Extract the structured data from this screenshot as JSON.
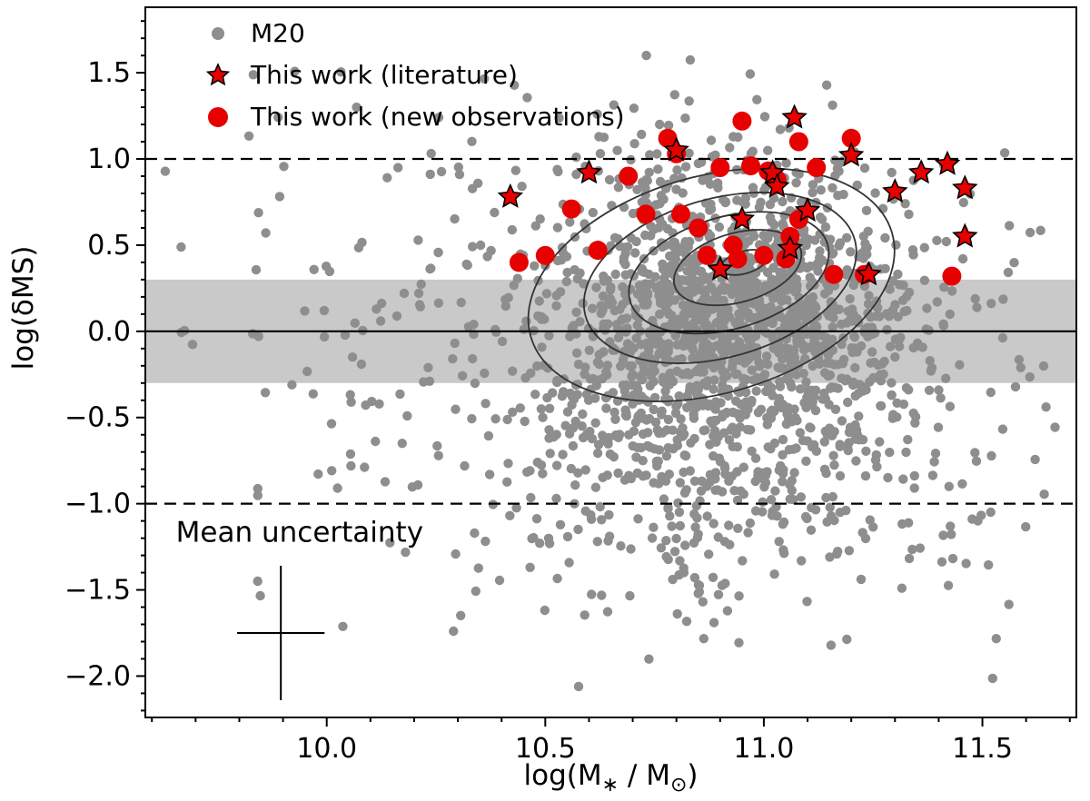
{
  "figure": {
    "description": "Scatter plot of main-sequence offset vs stellar mass"
  },
  "chart_data": {
    "type": "scatter",
    "title": "",
    "xlabel_parts": [
      {
        "t": "log(M",
        "sub": false
      },
      {
        "t": "∗",
        "sub": true
      },
      {
        "t": " / M",
        "sub": false
      },
      {
        "t": "⊙",
        "sub": true
      },
      {
        "t": ")",
        "sub": false
      }
    ],
    "ylabel": "log(δMS)",
    "xlim": [
      9.585,
      11.715
    ],
    "ylim": [
      -2.24,
      1.88
    ],
    "x_ticks": [
      {
        "v": 10.0,
        "label": "10.0"
      },
      {
        "v": 10.5,
        "label": "10.5"
      },
      {
        "v": 11.0,
        "label": "11.0"
      },
      {
        "v": 11.5,
        "label": "11.5"
      }
    ],
    "y_ticks": [
      {
        "v": 1.5,
        "label": "1.5"
      },
      {
        "v": 1.0,
        "label": "1.0"
      },
      {
        "v": 0.5,
        "label": "0.5"
      },
      {
        "v": 0.0,
        "label": "0.0"
      },
      {
        "v": -0.5,
        "label": "−0.5"
      },
      {
        "v": -1.0,
        "label": "−1.0"
      },
      {
        "v": -1.5,
        "label": "−1.5"
      },
      {
        "v": -2.0,
        "label": "−2.0"
      }
    ],
    "minor_tick_step": 0.1,
    "band": {
      "y_min": -0.3,
      "y_max": 0.3,
      "color": "#c9c9c9"
    },
    "lines": [
      {
        "y": 0.0,
        "style": "solid"
      },
      {
        "y": 1.0,
        "style": "dashed"
      },
      {
        "y": -1.0,
        "style": "dashed"
      }
    ],
    "legend": [
      {
        "marker": "gray-dot",
        "label": "M20"
      },
      {
        "marker": "red-star",
        "label": "This work (literature)"
      },
      {
        "marker": "red-dot",
        "label": "This work (new observations)"
      }
    ],
    "colors": {
      "m20": "#8e8e8e",
      "highlight": "#e60000",
      "contour": "#333333",
      "line": "#000000"
    },
    "series": {
      "m20_generated": {
        "seed": 42,
        "point_radius": 5.2,
        "blobs": [
          {
            "n": 1250,
            "cx": 10.93,
            "cy": 0.1,
            "sx": 0.2,
            "sy": 0.42
          },
          {
            "n": 420,
            "cx": 10.88,
            "cy": -0.75,
            "sx": 0.3,
            "sy": 0.45
          },
          {
            "n": 260,
            "cx": 10.65,
            "cy": 0.15,
            "sx": 0.45,
            "sy": 0.65
          },
          {
            "n": 90,
            "cx": 10.5,
            "cy": 0.1,
            "sx": 0.75,
            "sy": 0.95
          }
        ]
      },
      "literature": [
        [
          10.42,
          0.78
        ],
        [
          10.6,
          0.92
        ],
        [
          10.8,
          1.05
        ],
        [
          10.9,
          0.36
        ],
        [
          10.95,
          0.65
        ],
        [
          11.02,
          0.92
        ],
        [
          11.03,
          0.84
        ],
        [
          11.06,
          0.48
        ],
        [
          11.07,
          1.24
        ],
        [
          11.1,
          0.7
        ],
        [
          11.2,
          1.02
        ],
        [
          11.24,
          0.33
        ],
        [
          11.3,
          0.81
        ],
        [
          11.36,
          0.92
        ],
        [
          11.42,
          0.97
        ],
        [
          11.46,
          0.83
        ],
        [
          11.46,
          0.55
        ]
      ],
      "new_observations": [
        [
          10.44,
          0.4
        ],
        [
          10.5,
          0.44
        ],
        [
          10.56,
          0.71
        ],
        [
          10.62,
          0.47
        ],
        [
          10.69,
          0.9
        ],
        [
          10.73,
          0.68
        ],
        [
          10.78,
          1.12
        ],
        [
          10.8,
          1.03
        ],
        [
          10.81,
          0.68
        ],
        [
          10.85,
          0.6
        ],
        [
          10.87,
          0.44
        ],
        [
          10.9,
          0.95
        ],
        [
          10.93,
          0.5
        ],
        [
          10.94,
          0.42
        ],
        [
          10.95,
          1.22
        ],
        [
          10.97,
          0.96
        ],
        [
          11.0,
          0.44
        ],
        [
          11.01,
          0.93
        ],
        [
          11.03,
          0.88
        ],
        [
          11.05,
          0.42
        ],
        [
          11.06,
          0.55
        ],
        [
          11.08,
          0.65
        ],
        [
          11.08,
          1.1
        ],
        [
          11.12,
          0.95
        ],
        [
          11.16,
          0.33
        ],
        [
          11.2,
          1.12
        ],
        [
          11.23,
          0.33
        ],
        [
          11.43,
          0.32
        ]
      ]
    },
    "contours": [
      {
        "cx": 10.88,
        "cy": 0.27,
        "rx": 0.43,
        "ry": 0.63,
        "rot": -16
      },
      {
        "cx": 10.9,
        "cy": 0.31,
        "rx": 0.32,
        "ry": 0.46,
        "rot": -16
      },
      {
        "cx": 10.92,
        "cy": 0.34,
        "rx": 0.235,
        "ry": 0.325,
        "rot": -16
      },
      {
        "cx": 10.94,
        "cy": 0.37,
        "rx": 0.15,
        "ry": 0.2,
        "rot": -16
      },
      {
        "cx": 10.955,
        "cy": 0.4,
        "rx": 0.055,
        "ry": 0.065,
        "rot": -16
      }
    ],
    "annotation": {
      "text": "Mean uncertainty",
      "x": 9.655,
      "y": -1.22,
      "cross": {
        "x": 9.895,
        "y": -1.75,
        "xerr": 0.1,
        "yerr": 0.39
      }
    }
  }
}
